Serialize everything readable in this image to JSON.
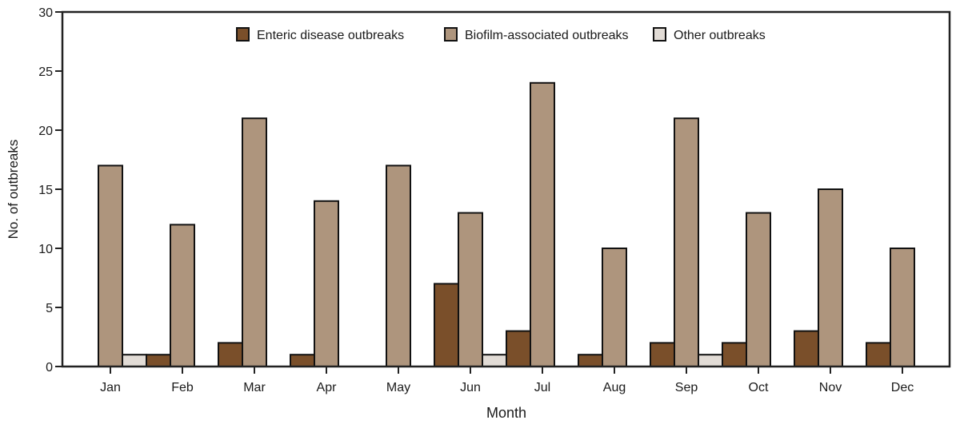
{
  "chart_data": {
    "type": "bar",
    "title": "",
    "xlabel": "Month",
    "ylabel": "No. of outbreaks",
    "ylim": [
      0,
      30
    ],
    "yticks": [
      0,
      5,
      10,
      15,
      20,
      25,
      30
    ],
    "grid": false,
    "legend_position": "top-center",
    "categories": [
      "Jan",
      "Feb",
      "Mar",
      "Apr",
      "May",
      "Jun",
      "Jul",
      "Aug",
      "Sep",
      "Oct",
      "Nov",
      "Dec"
    ],
    "series": [
      {
        "name": "Enteric disease outbreaks",
        "color": "#7a4f2a",
        "values": [
          0,
          1,
          2,
          1,
          0,
          7,
          3,
          1,
          2,
          2,
          3,
          2
        ]
      },
      {
        "name": "Biofilm-associated outbreaks",
        "color": "#ae957d",
        "values": [
          17,
          12,
          21,
          14,
          17,
          13,
          24,
          10,
          21,
          13,
          15,
          10
        ]
      },
      {
        "name": "Other outbreaks",
        "color": "#e2dcd6",
        "values": [
          1,
          0,
          0,
          0,
          0,
          1,
          0,
          0,
          1,
          0,
          0,
          0
        ]
      }
    ]
  }
}
